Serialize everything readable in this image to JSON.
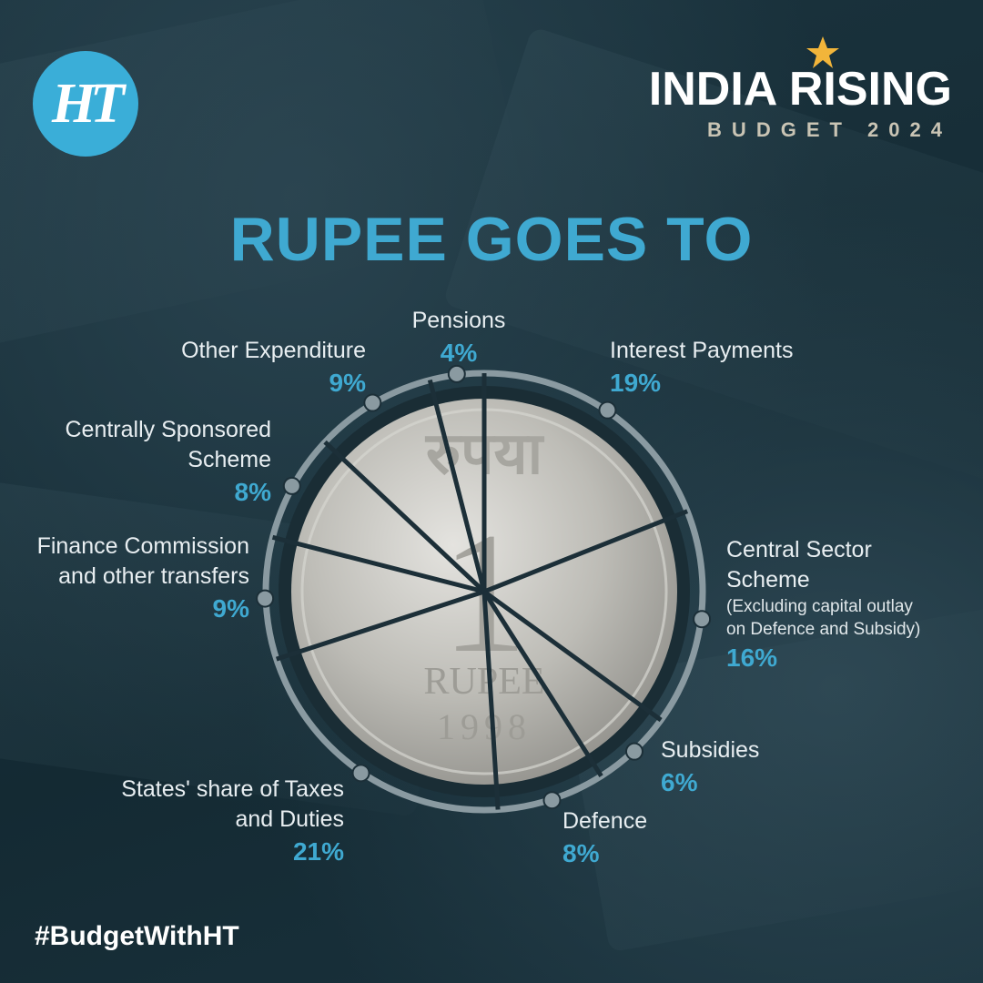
{
  "header": {
    "logo_text": "HT",
    "brand_title": "INDIA RISING",
    "brand_subtitle": "BUDGET 2024"
  },
  "footer": {
    "hashtag": "#BudgetWithHT"
  },
  "colors": {
    "accent": "#3fa9d1",
    "logo_bg": "#3aaed8",
    "star": "#f2b53a",
    "ring": "#8a9aa1",
    "coin": "#bcbcb6",
    "background": "#17303b"
  },
  "chart_data": {
    "type": "pie",
    "title": "RUPEE GOES TO",
    "slices": [
      {
        "label": "Interest Payments",
        "note": "",
        "value": 19,
        "pct_text": "19%"
      },
      {
        "label": "Central Sector Scheme",
        "note": "(Excluding capital outlay on Defence and Subsidy)",
        "value": 16,
        "pct_text": "16%"
      },
      {
        "label": "Subsidies",
        "note": "",
        "value": 6,
        "pct_text": "6%"
      },
      {
        "label": "Defence",
        "note": "",
        "value": 8,
        "pct_text": "8%"
      },
      {
        "label": "States' share of Taxes and Duties",
        "note": "",
        "value": 21,
        "pct_text": "21%"
      },
      {
        "label": "Finance Commission and other transfers",
        "note": "",
        "value": 9,
        "pct_text": "9%"
      },
      {
        "label": "Centrally Sponsored Scheme",
        "note": "",
        "value": 8,
        "pct_text": "8%"
      },
      {
        "label": "Other Expenditure",
        "note": "",
        "value": 9,
        "pct_text": "9%"
      },
      {
        "label": "Pensions",
        "note": "",
        "value": 4,
        "pct_text": "4%"
      }
    ],
    "coin_text": {
      "script": "रुपया",
      "numeral": "1",
      "word": "RUPEE",
      "year": "1998"
    }
  }
}
